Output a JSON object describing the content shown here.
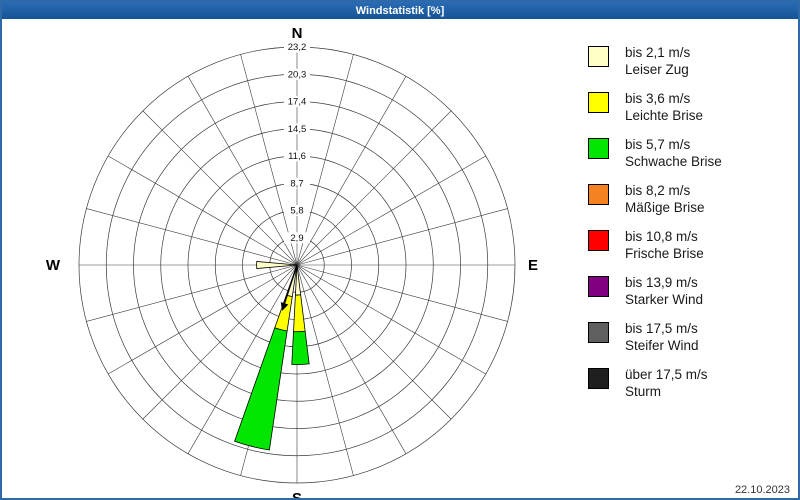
{
  "title_bar": {
    "title": "Windstatistik [%]",
    "bg_color": "#1b5ea9",
    "text_color": "#ffffff"
  },
  "compass": {
    "north": "N",
    "east": "E",
    "south": "S",
    "west": "W"
  },
  "rings": {
    "values": [
      "2,9",
      "5,8",
      "8,7",
      "11,6",
      "14,5",
      "17,4",
      "20,3",
      "23,2"
    ]
  },
  "legend": {
    "items": [
      {
        "label_line1": "bis 2,1 m/s",
        "label_line2": "Leiser Zug",
        "color": "#ffffc6"
      },
      {
        "label_line1": "bis 3,6 m/s",
        "label_line2": "Leichte Brise",
        "color": "#ffff00"
      },
      {
        "label_line1": "bis 5,7 m/s",
        "label_line2": "Schwache Brise",
        "color": "#00e600"
      },
      {
        "label_line1": "bis 8,2 m/s",
        "label_line2": "Mäßige Brise",
        "color": "#f58220"
      },
      {
        "label_line1": "bis 10,8 m/s",
        "label_line2": "Frische Brise",
        "color": "#ff0000"
      },
      {
        "label_line1": "bis 13,9 m/s",
        "label_line2": "Starker Wind",
        "color": "#800080"
      },
      {
        "label_line1": "bis 17,5 m/s",
        "label_line2": "Steifer Wind",
        "color": "#5f5f5f"
      },
      {
        "label_line1": "über 17,5 m/s",
        "label_line2": "Sturm",
        "color": "#1f1f1f"
      }
    ]
  },
  "date": "22.10.2023",
  "chart_data": {
    "type": "windrose",
    "title": "Windstatistik [%]",
    "unit": "%",
    "ring_step": 2.9,
    "ring_max": 23.2,
    "grid_step_deg": 15,
    "grid_color": "#3a3a3a",
    "sectors": [
      {
        "direction": "SSW",
        "direction_deg": 194,
        "width_deg": 11,
        "segments": [
          {
            "speed_class": "bis 2,1 m/s",
            "value": 3.4
          },
          {
            "speed_class": "bis 3,6 m/s",
            "value": 3.7
          },
          {
            "speed_class": "bis 5,7 m/s",
            "value": 12.8
          }
        ]
      },
      {
        "direction": "S",
        "direction_deg": 178,
        "width_deg": 10,
        "segments": [
          {
            "speed_class": "bis 2,1 m/s",
            "value": 3.2
          },
          {
            "speed_class": "bis 3,6 m/s",
            "value": 3.9
          },
          {
            "speed_class": "bis 5,7 m/s",
            "value": 3.5
          }
        ]
      },
      {
        "direction": "W",
        "direction_deg": 270,
        "width_deg": 10,
        "segments": [
          {
            "speed_class": "bis 2,1 m/s",
            "value": 4.3
          }
        ]
      }
    ],
    "center_arrow": {
      "direction_deg": 198,
      "length_pct": 4.5
    }
  }
}
